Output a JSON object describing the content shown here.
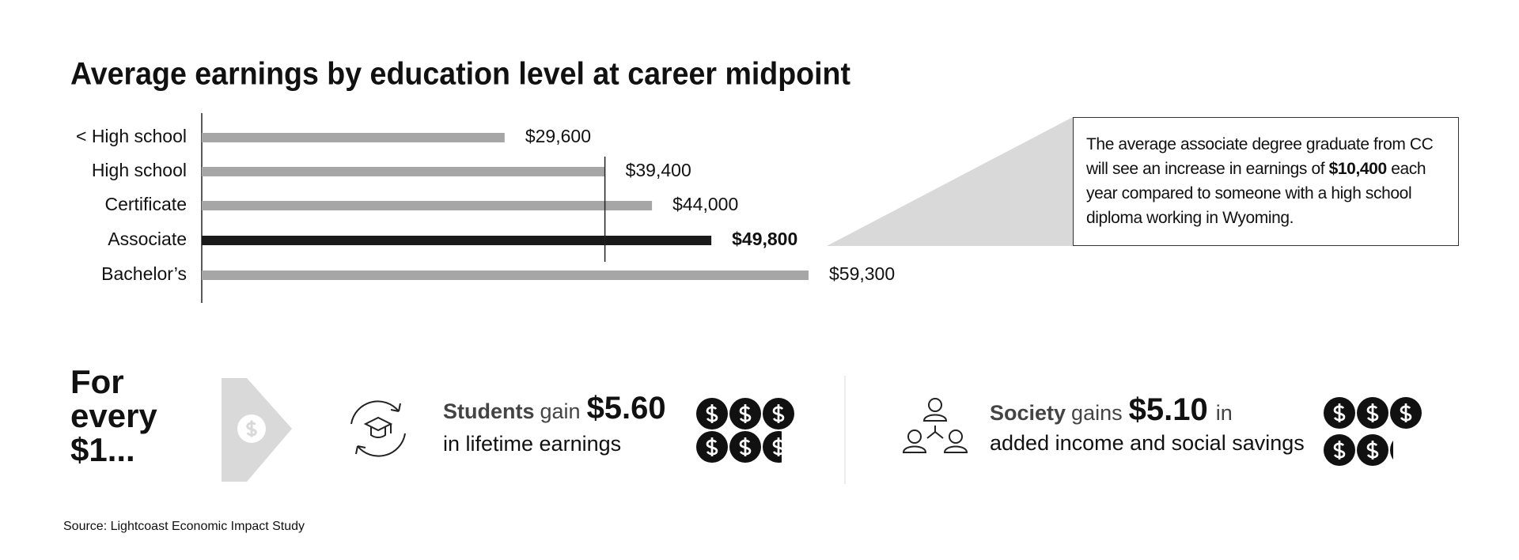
{
  "chart_data": {
    "type": "bar",
    "orientation": "horizontal",
    "title": "Average earnings by education level at career midpoint",
    "categories": [
      "< High school",
      "High school",
      "Certificate",
      "Associate",
      "Bachelor’s"
    ],
    "values": [
      29600,
      39400,
      44000,
      49800,
      59300
    ],
    "value_labels": [
      "$29,600",
      "$39,400",
      "$44,000",
      "$49,800",
      "$59,300"
    ],
    "colors": [
      "#a6a6a6",
      "#a6a6a6",
      "#a6a6a6",
      "#1a1a1a",
      "#a6a6a6"
    ],
    "emphasis": [
      false,
      false,
      false,
      true,
      false
    ],
    "reference_category": "High school"
  },
  "callout": {
    "text_before": "The average associate degree graduate from CC will see an increase in earnings of",
    "highlight": "$10,400",
    "text_after": "each year compared to someone with a high school diploma working in Wyoming."
  },
  "impact": {
    "heading": [
      "For",
      "every",
      "$1..."
    ],
    "items": [
      {
        "subject": "Students",
        "verb": "gain",
        "value": 5.6,
        "value_label": "$5.60",
        "tail": "in",
        "description": "in lifetime earnings"
      },
      {
        "subject": "Society",
        "verb": "gains",
        "value": 5.1,
        "value_label": "$5.10",
        "tail": "in",
        "description": "added income and social savings"
      }
    ]
  },
  "source": "Source: Lightcoast Economic Impact Study"
}
